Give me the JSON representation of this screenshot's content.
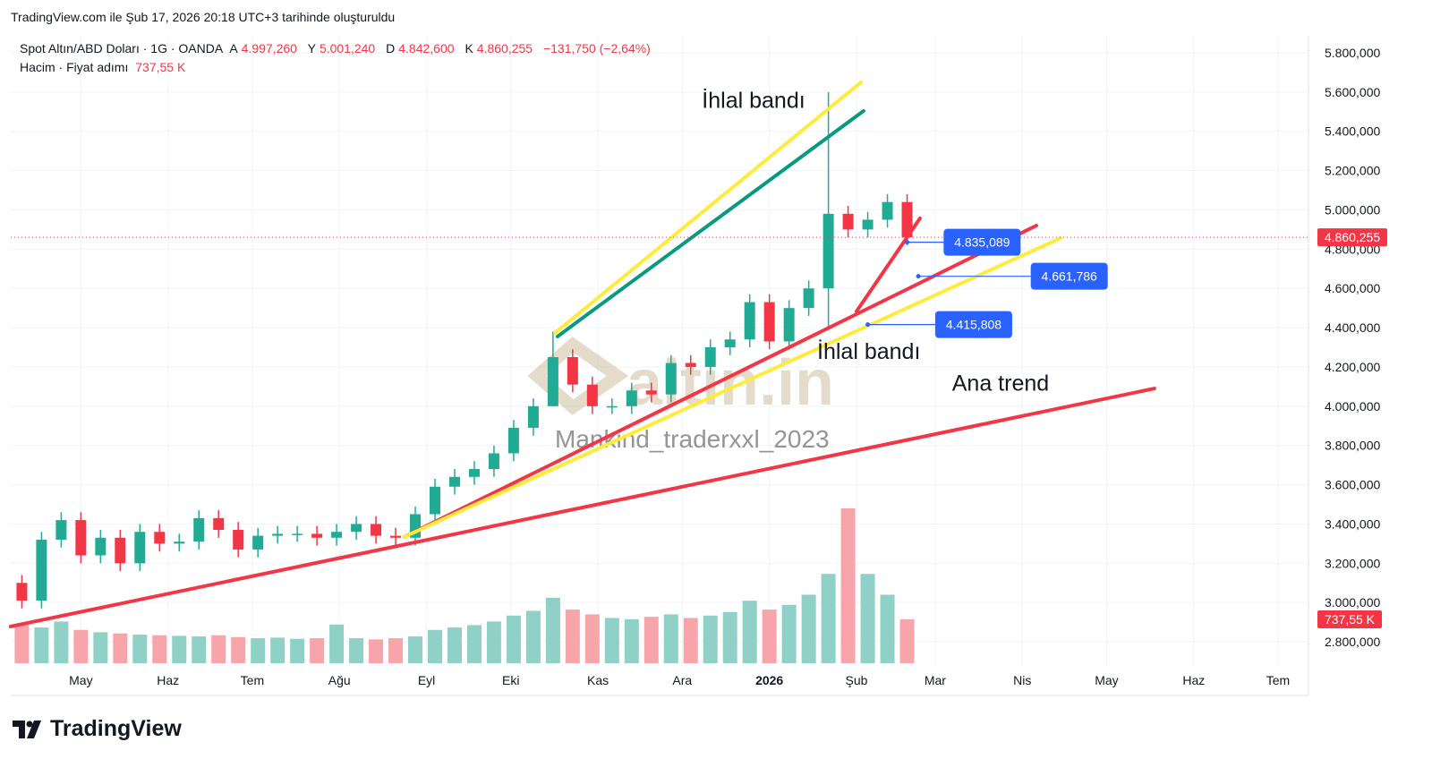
{
  "caption": "TradingView.com ile Şub 17, 2026 20:18 UTC+3 tarihinde oluşturuldu",
  "legend": {
    "symbol": "Spot Altın/ABD Doları · 1G · OANDA",
    "open_label": "A",
    "open": "4.997,260",
    "high_label": "Y",
    "high": "5.001,240",
    "low_label": "D",
    "low": "4.842,600",
    "close_label": "K",
    "close": "4.860,255",
    "change": "−131,750 (−2,64%)",
    "volume_label": "Hacim · Fiyat adımı",
    "volume": "737,55 K"
  },
  "footer": {
    "brand": "TradingView"
  },
  "watermark": {
    "logo": "altın.in",
    "author": "Mankind_traderxxl_2023"
  },
  "colors": {
    "up": "#22ab94",
    "down": "#f23645",
    "vol_up": "#8fd1c6",
    "vol_down": "#f7a5ab",
    "label_blue": "#2962ff",
    "yellow": "#ffeb3b",
    "green": "#089981",
    "trend_red": "#f23645"
  },
  "chart_data": {
    "type": "candlestick",
    "title": "Spot Altın/ABD Doları · 1G · OANDA",
    "x_unit": "days since 2026-02-01",
    "candle_period_days": 7,
    "first_candle_day": -300,
    "closes": [
      3010,
      3320,
      3420,
      3240,
      3330,
      3200,
      3360,
      3300,
      3310,
      3430,
      3370,
      3270,
      3340,
      3350,
      3350,
      3330,
      3360,
      3400,
      3340,
      3330,
      3450,
      3590,
      3640,
      3680,
      3760,
      3890,
      4000,
      4250,
      4110,
      4000,
      4000,
      4080,
      4060,
      4220,
      4200,
      4300,
      4340,
      4530,
      4330,
      4500,
      4600,
      4980,
      4900,
      4950,
      5040,
      4860.255
    ],
    "first_open": 3100,
    "wick_extremes": {
      "41": {
        "high": 5600,
        "low": 4400
      },
      "27": {
        "high": 4380,
        "low": 4000
      }
    },
    "volumes_k": [
      650,
      600,
      700,
      560,
      520,
      500,
      480,
      470,
      460,
      450,
      470,
      440,
      420,
      430,
      410,
      420,
      650,
      420,
      400,
      420,
      450,
      560,
      600,
      640,
      700,
      800,
      880,
      1100,
      900,
      820,
      760,
      740,
      780,
      820,
      760,
      800,
      860,
      1050,
      900,
      980,
      1150,
      1500,
      2600,
      1500,
      1150,
      737.55
    ],
    "ylim": [
      2700,
      5900
    ],
    "y_ticks": [
      5800,
      5600,
      5400,
      5200,
      5000,
      4800,
      4600,
      4400,
      4200,
      4000,
      3800,
      3600,
      3400,
      3200,
      3000,
      2800
    ],
    "y_tick_labels": [
      "5.800,000",
      "5.600,000",
      "5.400,000",
      "5.200,000",
      "5.000,000",
      "4.800,000",
      "4.600,000",
      "4.400,000",
      "4.200,000",
      "4.000,000",
      "3.800,000",
      "3.600,000",
      "3.400,000",
      "3.200,000",
      "3.000,000",
      "2.800,000"
    ],
    "x_ticks": [
      {
        "day": -276,
        "label": "May"
      },
      {
        "day": -245,
        "label": "Haz"
      },
      {
        "day": -215,
        "label": "Tem"
      },
      {
        "day": -184,
        "label": "Ağu"
      },
      {
        "day": -153,
        "label": "Eyl"
      },
      {
        "day": -123,
        "label": "Eki"
      },
      {
        "day": -92,
        "label": "Kas"
      },
      {
        "day": -62,
        "label": "Ara"
      },
      {
        "day": -31,
        "label": "2026",
        "bold": true
      },
      {
        "day": 0,
        "label": "Şub"
      },
      {
        "day": 28,
        "label": "Mar"
      },
      {
        "day": 59,
        "label": "Nis"
      },
      {
        "day": 89,
        "label": "May"
      },
      {
        "day": 120,
        "label": "Haz"
      },
      {
        "day": 150,
        "label": "Tem"
      }
    ],
    "last_price": 4860.255,
    "last_price_label": "4.860,255",
    "last_volume_label": "737,55 K",
    "trendlines": [
      {
        "name": "ana-trend-line",
        "color": "trend_red",
        "p1": [
          -301,
          2878
        ],
        "p2": [
          106,
          4090
        ]
      },
      {
        "name": "ihlal-band-red-line",
        "color": "trend_red",
        "p1": [
          -161,
          3334
        ],
        "p2": [
          64,
          4920
        ]
      },
      {
        "name": "ihlal-band-yellow-lower-line",
        "color": "yellow",
        "p1": [
          -161,
          3334
        ],
        "p2": [
          72.6,
          4856
        ]
      },
      {
        "name": "steep-red-line",
        "color": "trend_red",
        "p1": [
          0,
          4483
        ],
        "p2": [
          22.6,
          4957
        ]
      },
      {
        "name": "upper-green-line",
        "color": "green",
        "p1": [
          -106.4,
          4355
        ],
        "p2": [
          2.5,
          5504
        ]
      },
      {
        "name": "upper-yellow-line",
        "color": "yellow",
        "p1": [
          -107.3,
          4373
        ],
        "p2": [
          1.6,
          5650
        ]
      }
    ],
    "annotations": [
      {
        "text": "İhlal bandı",
        "day": -55,
        "price": 5520
      },
      {
        "text": "İhlal bandı",
        "day": -14,
        "price": 4240
      },
      {
        "text": "Ana trend",
        "day": 34,
        "price": 4080
      }
    ],
    "price_callouts": [
      {
        "label": "4.835,089",
        "day": 18,
        "price": 4835.089,
        "label_day": 31
      },
      {
        "label": "4.661,786",
        "day": 22,
        "price": 4661.786,
        "label_day": 62
      },
      {
        "label": "4.415,808",
        "day": 4,
        "price": 4415.808,
        "label_day": 28
      }
    ]
  }
}
